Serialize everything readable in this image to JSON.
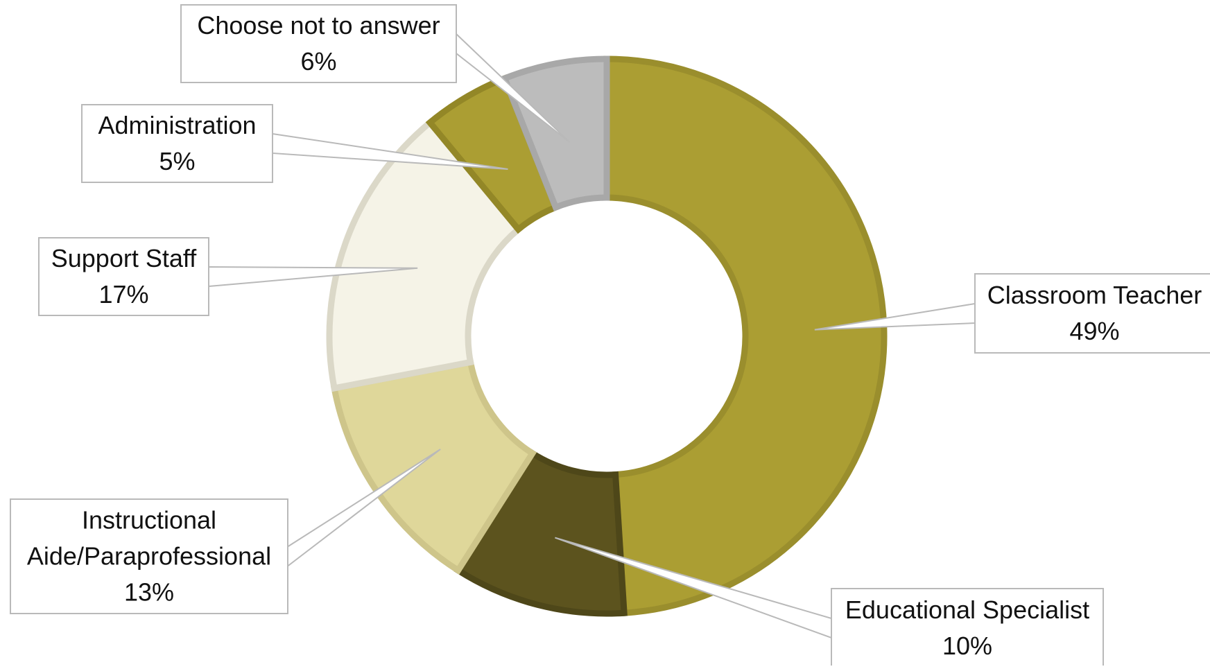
{
  "chart_data": {
    "type": "pie",
    "variant": "donut",
    "title": "",
    "legend": "none",
    "slices": [
      {
        "label": "Classroom Teacher",
        "value": 49,
        "pct_text": "49%",
        "color": "#ab9e33",
        "stroke": "#9a8e2d"
      },
      {
        "label": "Educational Specialist",
        "value": 10,
        "pct_text": "10%",
        "color": "#5c531e",
        "stroke": "#4e4719"
      },
      {
        "label": "Instructional Aide/Paraprofessional",
        "value": 13,
        "pct_text": "13%",
        "color": "#dfd79a",
        "stroke": "#cec58a"
      },
      {
        "label": "Support Staff",
        "value": 17,
        "pct_text": "17%",
        "color": "#f5f3e7",
        "stroke": "#dbd8c8"
      },
      {
        "label": "Administration",
        "value": 5,
        "pct_text": "5%",
        "color": "#ab9e33",
        "stroke": "#938727"
      },
      {
        "label": "Choose not to answer",
        "value": 6,
        "pct_text": "6%",
        "color": "#bcbcbc",
        "stroke": "#a8a8a8"
      }
    ]
  }
}
